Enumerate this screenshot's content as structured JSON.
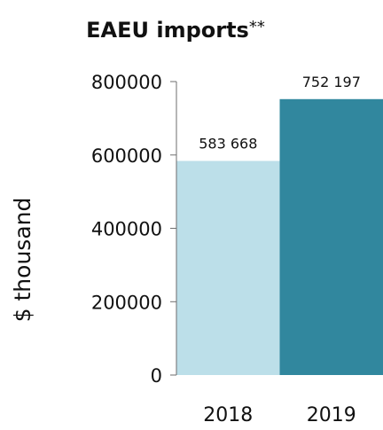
{
  "chart_data": {
    "type": "bar",
    "title": "EAEU imports",
    "title_suffix": "**",
    "xlabel": "",
    "ylabel": "$ thousand",
    "categories": [
      "2018",
      "2019"
    ],
    "values": [
      583668,
      752197
    ],
    "data_labels": [
      "583 668",
      "752 197"
    ],
    "colors": [
      "#bcdfe9",
      "#31879e"
    ],
    "yticks": [
      "0",
      "200000",
      "400000",
      "600000",
      "800000"
    ],
    "ylim": [
      0,
      800000
    ],
    "grid": false,
    "legend": "none"
  }
}
